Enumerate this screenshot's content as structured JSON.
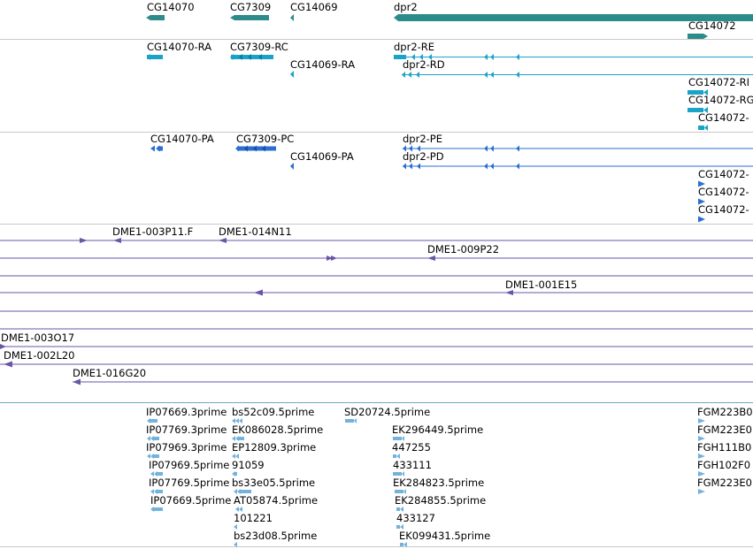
{
  "colors": {
    "gene": "#2e8b8b",
    "mrna": "#1aa3c8",
    "protein": "#2a6fd1",
    "clone": "#6a55a8",
    "est": "#74b2dc",
    "divider": "#c8c8c8"
  },
  "gene_track": {
    "labels": [
      "CG14070",
      "CG7309",
      "CG14069",
      "dpr2",
      "CG14072"
    ]
  },
  "mrna_track": {
    "labels": [
      "CG14070-RA",
      "CG7309-RC",
      "CG14069-RA",
      "dpr2-RE",
      "dpr2-RD",
      "CG14072-RI",
      "CG14072-RG",
      "CG14072-"
    ]
  },
  "protein_track": {
    "labels": [
      "CG14070-PA",
      "CG7309-PC",
      "CG14069-PA",
      "dpr2-PE",
      "dpr2-PD",
      "CG14072-",
      "CG14072-",
      "CG14072-"
    ]
  },
  "clone_track": {
    "labels": [
      "DME1-003P11.F",
      "DME1-014N11",
      "DME1-009P22",
      "DME1-001E15",
      "DME1-003O17",
      "DME1-002L20",
      "DME1-016G20"
    ]
  },
  "est_track": {
    "labels": [
      "IP07669.3prime",
      "bs52c09.5prime",
      "SD20724.5prime",
      "FGM223B0",
      "IP07769.3prime",
      "EK086028.5prime",
      "EK296449.5prime",
      "FGM223E0",
      "IP07969.3prime",
      "EP12809.3prime",
      "447255",
      "FGH111B0",
      "IP07969.5prime",
      "91059",
      "433111",
      "FGH102F0",
      "IP07769.5prime",
      "bs33e05.5prime",
      "EK284823.5prime",
      "FGM223E0",
      "IP07669.5prime",
      "AT05874.5prime",
      "EK284855.5prime",
      "101221",
      "433127",
      "bs23d08.5prime",
      "EK099431.5prime"
    ]
  }
}
